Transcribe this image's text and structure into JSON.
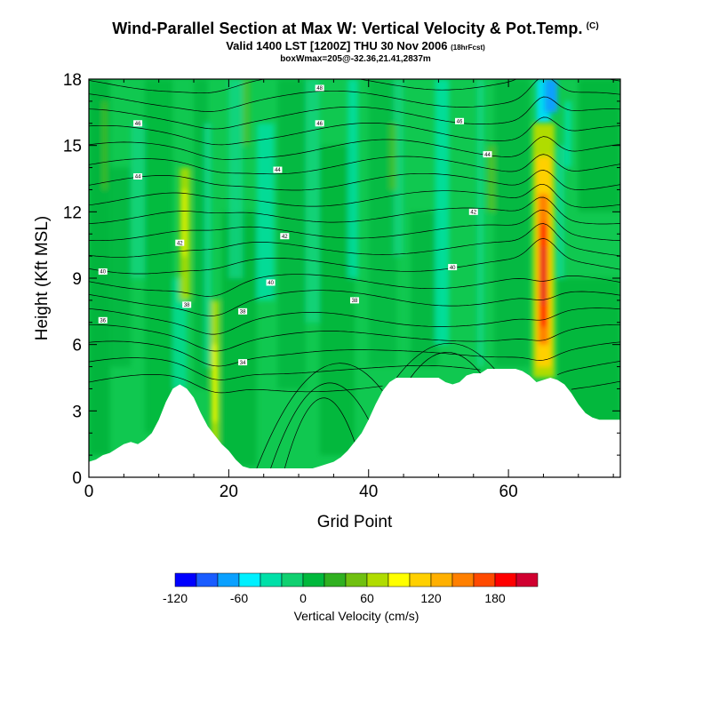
{
  "header": {
    "title": "Wind-Parallel Section at Max W: Vertical Velocity & Pot.Temp.",
    "copyright": "(C)",
    "valid": "Valid 1400 LST [1200Z] THU 30 Nov 2006",
    "fcst": "(18hrFcst)",
    "box": "boxWmax=205@-32.36,21.41,2837m"
  },
  "chart_data": {
    "type": "heatmap",
    "title": "Wind-Parallel Section at Max W: Vertical Velocity & Pot.Temp.",
    "xlabel": "Grid Point",
    "ylabel": "Height (Kft MSL)",
    "xlim": [
      0,
      76
    ],
    "ylim": [
      0,
      18
    ],
    "xticks": [
      0,
      20,
      40,
      60
    ],
    "yticks": [
      0,
      3,
      6,
      9,
      12,
      15,
      18
    ],
    "terrain": {
      "x": [
        0,
        1,
        2,
        3,
        4,
        5,
        6,
        7,
        8,
        9,
        10,
        11,
        12,
        13,
        14,
        15,
        16,
        17,
        18,
        19,
        20,
        21,
        22,
        23,
        24,
        25,
        26,
        27,
        28,
        29,
        30,
        31,
        32,
        33,
        34,
        35,
        36,
        37,
        38,
        39,
        40,
        41,
        42,
        43,
        44,
        45,
        46,
        47,
        48,
        49,
        50,
        51,
        52,
        53,
        54,
        55,
        56,
        57,
        58,
        59,
        60,
        61,
        62,
        63,
        64,
        65,
        66,
        67,
        68,
        69,
        70,
        71,
        72,
        73,
        74,
        75,
        76
      ],
      "height_kft": [
        0.7,
        0.8,
        1.0,
        1.1,
        1.3,
        1.5,
        1.6,
        1.5,
        1.7,
        2.0,
        2.6,
        3.4,
        4.0,
        4.2,
        4.0,
        3.6,
        2.9,
        2.3,
        1.9,
        1.5,
        1.2,
        0.8,
        0.5,
        0.4,
        0.4,
        0.4,
        0.4,
        0.4,
        0.4,
        0.4,
        0.4,
        0.4,
        0.4,
        0.5,
        0.6,
        0.7,
        0.9,
        1.2,
        1.6,
        2.0,
        2.6,
        3.3,
        3.9,
        4.3,
        4.5,
        4.5,
        4.5,
        4.5,
        4.5,
        4.5,
        4.5,
        4.3,
        4.2,
        4.3,
        4.6,
        4.7,
        4.7,
        4.9,
        4.9,
        4.9,
        4.9,
        4.9,
        4.8,
        4.6,
        4.3,
        4.4,
        4.5,
        4.4,
        4.2,
        3.8,
        3.3,
        2.9,
        2.7,
        2.6,
        2.6,
        2.6,
        2.6
      ]
    },
    "contours": {
      "variable": "Potential Temperature",
      "labels": [
        {
          "value": "48",
          "x": 33,
          "y": 17.6
        },
        {
          "value": "46",
          "x": 33,
          "y": 16.0
        },
        {
          "value": "46",
          "x": 7,
          "y": 16.0
        },
        {
          "value": "46",
          "x": 53,
          "y": 16.1
        },
        {
          "value": "44",
          "x": 57,
          "y": 14.6
        },
        {
          "value": "44",
          "x": 7,
          "y": 13.6
        },
        {
          "value": "44",
          "x": 27,
          "y": 13.9
        },
        {
          "value": "42",
          "x": 55,
          "y": 12.0
        },
        {
          "value": "42",
          "x": 13,
          "y": 10.6
        },
        {
          "value": "42",
          "x": 28,
          "y": 10.9
        },
        {
          "value": "40",
          "x": 2,
          "y": 9.3
        },
        {
          "value": "40",
          "x": 26,
          "y": 8.8
        },
        {
          "value": "40",
          "x": 52,
          "y": 9.5
        },
        {
          "value": "38",
          "x": 14,
          "y": 7.8
        },
        {
          "value": "38",
          "x": 22,
          "y": 7.5
        },
        {
          "value": "38",
          "x": 38,
          "y": 8.0
        },
        {
          "value": "36",
          "x": 2,
          "y": 7.1
        },
        {
          "value": "34",
          "x": 22,
          "y": 5.2
        }
      ]
    },
    "fill": {
      "variable": "Vertical Velocity",
      "units": "cm/s",
      "max": 205,
      "max_location": "Grid Point 65, ~9 Kft"
    },
    "colorbar": {
      "title": "Vertical Velocity (cm/s)",
      "tick_labels": [
        "-120",
        "-60",
        "0",
        "60",
        "120",
        "180"
      ],
      "levels": [
        -120,
        -100,
        -80,
        -60,
        -40,
        -20,
        0,
        20,
        40,
        60,
        80,
        100,
        120,
        140,
        160,
        180,
        200
      ],
      "colors": [
        "#0000ff",
        "#1a5cff",
        "#0aa0ff",
        "#00f0ff",
        "#00e0a8",
        "#10d070",
        "#00b83c",
        "#30b020",
        "#70c010",
        "#b0dc00",
        "#ffff00",
        "#ffd000",
        "#ffb000",
        "#ff8000",
        "#ff4a00",
        "#ff0000",
        "#d00030"
      ]
    }
  }
}
